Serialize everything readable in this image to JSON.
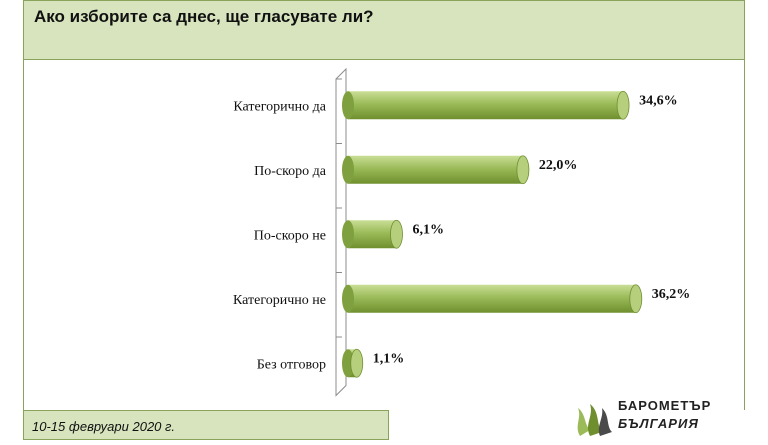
{
  "header": {
    "title": "Ако изборите са днес, ще гласувате ли?"
  },
  "footer": {
    "date": "10-15 февруари 2020 г."
  },
  "logo": {
    "line1": "БАРОМЕТЪР",
    "line2": "БЪЛГАРИЯ"
  },
  "colors": {
    "bar": "#9bbb59",
    "bar_dark": "#6f8f2e",
    "bar_light": "#c9de96",
    "panel": "#d7e4bd"
  },
  "chart_data": {
    "type": "bar",
    "orientation": "horizontal",
    "title": "Ако изборите са днес, ще гласувате ли?",
    "categories": [
      "Категорично да",
      "По-скоро да",
      "По-скоро не",
      "Категорично не",
      "Без отговор"
    ],
    "values": [
      34.6,
      22.0,
      6.1,
      36.2,
      1.1
    ],
    "value_labels": [
      "34,6%",
      "22,0%",
      "6,1%",
      "36,2%",
      "1,1%"
    ],
    "unit": "%",
    "xlim": [
      0,
      40
    ],
    "grid": false,
    "legend": "none"
  }
}
